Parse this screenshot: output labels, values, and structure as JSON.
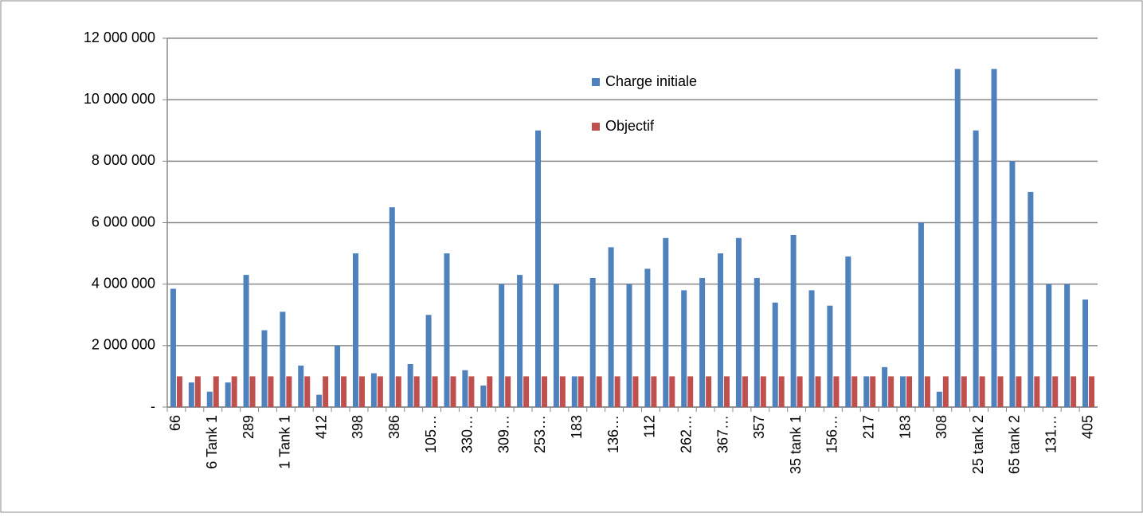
{
  "chart_data": {
    "type": "bar",
    "categories": [
      "66",
      null,
      "6 Tank 1",
      null,
      "289",
      null,
      "1 Tank 1",
      null,
      "412",
      null,
      "398",
      null,
      "386",
      null,
      "105…",
      null,
      "330…",
      null,
      "309…",
      null,
      "253…",
      null,
      "183",
      null,
      "136…",
      null,
      "112",
      null,
      "262…",
      null,
      "367…",
      null,
      "357",
      null,
      "35 tank 1",
      null,
      "156…",
      null,
      "217",
      null,
      "183",
      null,
      "308",
      null,
      "25 tank 2",
      null,
      "65 tank 2",
      null,
      "131…",
      null,
      "405"
    ],
    "series": [
      {
        "name": "Charge initiale",
        "color": "#4f81bd",
        "values": [
          3850000,
          800000,
          500000,
          800000,
          4300000,
          2500000,
          3100000,
          1350000,
          400000,
          2000000,
          5000000,
          1100000,
          6500000,
          1400000,
          3000000,
          5000000,
          1200000,
          700000,
          4000000,
          4300000,
          9000000,
          4000000,
          1000000,
          4200000,
          5200000,
          4000000,
          4500000,
          5500000,
          3800000,
          4200000,
          5000000,
          5500000,
          4200000,
          3400000,
          5600000,
          3800000,
          3300000,
          4900000,
          1000000,
          1300000,
          1000000,
          6000000,
          500000,
          11000000,
          9000000,
          11000000,
          8000000,
          7000000,
          4000000,
          4000000,
          3500000
        ]
      },
      {
        "name": "Objectif",
        "color": "#c0504d",
        "values": [
          1000000,
          1000000,
          1000000,
          1000000,
          1000000,
          1000000,
          1000000,
          1000000,
          1000000,
          1000000,
          1000000,
          1000000,
          1000000,
          1000000,
          1000000,
          1000000,
          1000000,
          1000000,
          1000000,
          1000000,
          1000000,
          1000000,
          1000000,
          1000000,
          1000000,
          1000000,
          1000000,
          1000000,
          1000000,
          1000000,
          1000000,
          1000000,
          1000000,
          1000000,
          1000000,
          1000000,
          1000000,
          1000000,
          1000000,
          1000000,
          1000000,
          1000000,
          1000000,
          1000000,
          1000000,
          1000000,
          1000000,
          1000000,
          1000000,
          1000000,
          1000000
        ]
      }
    ],
    "ylim": [
      0,
      12000000
    ],
    "yticks": [
      {
        "value": 0,
        "label": "-"
      },
      {
        "value": 2000000,
        "label": "2 000 000"
      },
      {
        "value": 4000000,
        "label": "4 000 000"
      },
      {
        "value": 6000000,
        "label": "6 000 000"
      },
      {
        "value": 8000000,
        "label": "8 000 000"
      },
      {
        "value": 10000000,
        "label": "10 000 000"
      },
      {
        "value": 12000000,
        "label": "12 000 000"
      }
    ],
    "grid": true,
    "legend": "top"
  }
}
